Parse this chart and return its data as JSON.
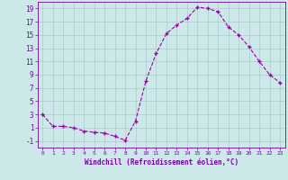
{
  "x": [
    0,
    1,
    2,
    3,
    4,
    5,
    6,
    7,
    8,
    9,
    10,
    11,
    12,
    13,
    14,
    15,
    16,
    17,
    18,
    19,
    20,
    21,
    22,
    23
  ],
  "y": [
    3,
    1.2,
    1.2,
    1.0,
    0.5,
    0.3,
    0.2,
    -0.3,
    -0.9,
    2.0,
    8.0,
    12.2,
    15.2,
    16.5,
    17.5,
    19.2,
    19.0,
    18.5,
    16.2,
    15.0,
    13.2,
    11.0,
    9.0,
    7.8
  ],
  "xlim": [
    -0.5,
    23.5
  ],
  "ylim": [
    -2,
    20
  ],
  "yticks": [
    -1,
    1,
    3,
    5,
    7,
    9,
    11,
    13,
    15,
    17,
    19
  ],
  "xticks": [
    0,
    1,
    2,
    3,
    4,
    5,
    6,
    7,
    8,
    9,
    10,
    11,
    12,
    13,
    14,
    15,
    16,
    17,
    18,
    19,
    20,
    21,
    22,
    23
  ],
  "xlabel": "Windchill (Refroidissement éolien,°C)",
  "line_color": "#9900aa",
  "marker": "+",
  "markersize": 3,
  "linewidth": 0.8,
  "bg_color": "#cce8e8",
  "grid_color": "#aacccc",
  "axis_color": "#7700aa",
  "tick_color": "#7700aa",
  "label_color": "#7700aa",
  "font": "monospace",
  "ytick_fontsize": 5.5,
  "xtick_fontsize": 4.5,
  "xlabel_fontsize": 5.5
}
